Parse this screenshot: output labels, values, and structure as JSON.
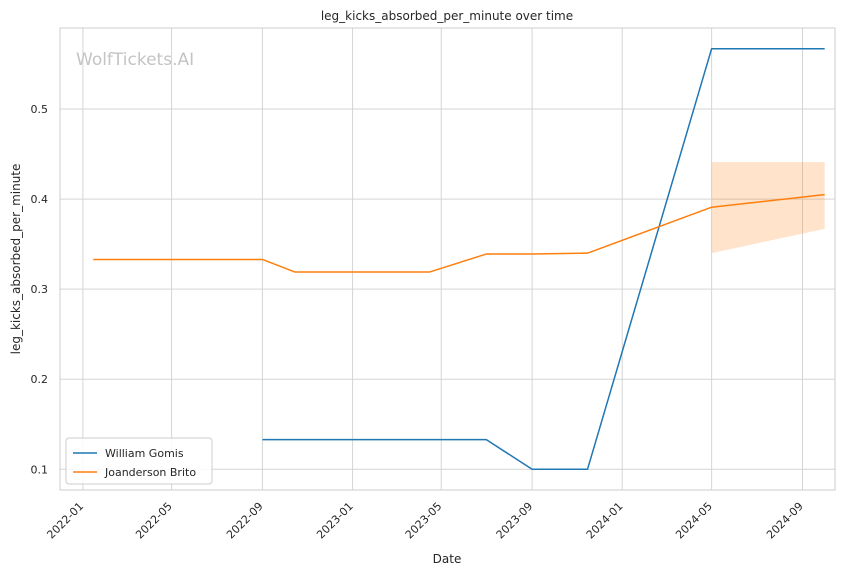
{
  "chart_data": {
    "type": "line",
    "title": "leg_kicks_absorbed_per_minute over time",
    "xlabel": "Date",
    "ylabel": "leg_kicks_absorbed_per_minute",
    "watermark": "WolfTickets.AI",
    "x_ticks": [
      "2022-01",
      "2022-05",
      "2022-09",
      "2023-01",
      "2023-05",
      "2023-09",
      "2024-01",
      "2024-05",
      "2024-09"
    ],
    "xlim": [
      "2021-12-01",
      "2024-10-15"
    ],
    "y_ticks": [
      0.1,
      0.2,
      0.3,
      0.4,
      0.5
    ],
    "ylim": [
      0.077,
      0.59
    ],
    "grid": true,
    "legend_position": "lower-left",
    "series": [
      {
        "name": "William Gomis",
        "color": "#1f77b4",
        "points": [
          {
            "x": "2022-09-01",
            "y": 0.133
          },
          {
            "x": "2023-07-01",
            "y": 0.133
          },
          {
            "x": "2023-09-01",
            "y": 0.1
          },
          {
            "x": "2023-11-15",
            "y": 0.1
          },
          {
            "x": "2024-05-01",
            "y": 0.567
          },
          {
            "x": "2024-10-01",
            "y": 0.567
          }
        ]
      },
      {
        "name": "Joanderson Brito",
        "color": "#ff7f0e",
        "points": [
          {
            "x": "2022-01-15",
            "y": 0.333
          },
          {
            "x": "2022-09-01",
            "y": 0.333
          },
          {
            "x": "2022-10-15",
            "y": 0.319
          },
          {
            "x": "2023-04-15",
            "y": 0.319
          },
          {
            "x": "2023-07-01",
            "y": 0.339
          },
          {
            "x": "2023-09-01",
            "y": 0.339
          },
          {
            "x": "2023-11-15",
            "y": 0.34
          },
          {
            "x": "2024-05-01",
            "y": 0.391
          },
          {
            "x": "2024-10-01",
            "y": 0.405
          }
        ],
        "band": [
          {
            "x": "2024-05-01",
            "low": 0.34,
            "high": 0.441
          },
          {
            "x": "2024-10-01",
            "low": 0.367,
            "high": 0.441
          }
        ]
      }
    ]
  }
}
